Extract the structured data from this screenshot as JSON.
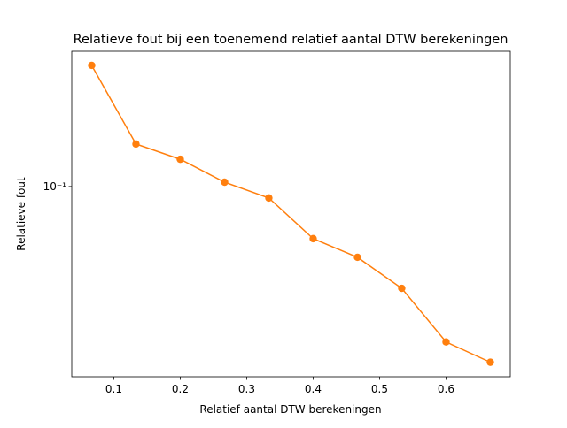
{
  "chart_data": {
    "type": "line",
    "title": "Relatieve fout bij een toenemend relatief aantal DTW berekeningen",
    "xlabel": "Relatief aantal DTW berekeningen",
    "ylabel": "Relatieve fout",
    "x": [
      0.0667,
      0.1333,
      0.2,
      0.2667,
      0.3333,
      0.4,
      0.4667,
      0.5333,
      0.6,
      0.6667
    ],
    "series": [
      {
        "name": "Relatieve fout",
        "color": "#ff7f0e",
        "values": [
          0.3,
          0.147,
          0.128,
          0.104,
          0.0901,
          0.0623,
          0.0526,
          0.0397,
          0.0244,
          0.0203
        ]
      }
    ],
    "xlim": [
      0.0367,
      0.6967
    ],
    "xticks": [
      0.1,
      0.2,
      0.3,
      0.4,
      0.5,
      0.6
    ],
    "ylim": [
      0.0178,
      0.341
    ],
    "yticks": [
      {
        "value": 0.1,
        "label": "10⁻¹"
      }
    ],
    "yscale": "log"
  }
}
